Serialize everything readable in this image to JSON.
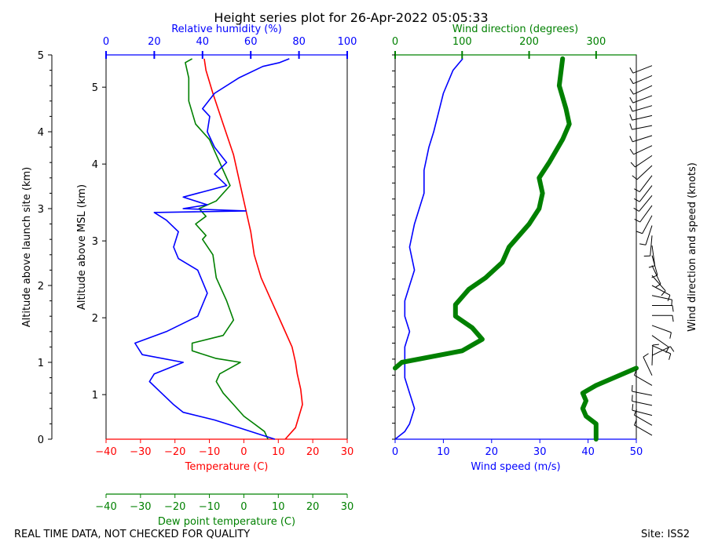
{
  "title": "Height series plot for 26-Apr-2022 05:05:33",
  "footer": {
    "left": "REAL TIME DATA, NOT CHECKED FOR QUALITY",
    "right": "Site: ISS2"
  },
  "colors": {
    "temperature": "#ff0000",
    "dewpoint": "#008000",
    "humidity": "#0000ff",
    "wind_speed": "#0000ff",
    "wind_direction": "#008000",
    "barbs": "#000000"
  },
  "chart_data": [
    {
      "type": "line",
      "name": "thermo-panel",
      "axes": {
        "temperature": {
          "label": "Temperature (C)",
          "range": [
            -40,
            30
          ],
          "ticks": [
            -40,
            -30,
            -20,
            -10,
            0,
            10,
            20,
            30
          ]
        },
        "dewpoint": {
          "label": "Dew point temperature (C)",
          "range": [
            -40,
            30
          ],
          "ticks": [
            -40,
            -30,
            -20,
            -10,
            0,
            10,
            20,
            30
          ]
        },
        "humidity": {
          "label": "Relative humidity (%)",
          "range": [
            0,
            100
          ],
          "ticks": [
            0,
            20,
            40,
            60,
            80,
            100
          ]
        },
        "alt_msl": {
          "label": "Altitude above MSL (km)",
          "range": [
            0.42,
            5.42
          ],
          "ticks": [
            1,
            2,
            3,
            4,
            5
          ]
        },
        "alt_site": {
          "label": "Altitude above launch site (km)",
          "range": [
            0,
            5
          ],
          "ticks": [
            0,
            1,
            2,
            3,
            4,
            5
          ]
        }
      },
      "series": [
        {
          "name": "Temperature",
          "axis": "temperature",
          "points": [
            [
              12,
              0
            ],
            [
              13,
              0.05
            ],
            [
              15,
              0.15
            ],
            [
              16,
              0.3
            ],
            [
              17,
              0.45
            ],
            [
              16.5,
              0.65
            ],
            [
              15.5,
              0.85
            ],
            [
              15,
              1.0
            ],
            [
              14,
              1.2
            ],
            [
              11,
              1.5
            ],
            [
              8,
              1.8
            ],
            [
              5,
              2.1
            ],
            [
              3,
              2.4
            ],
            [
              2,
              2.7
            ],
            [
              0.5,
              3.0
            ],
            [
              -1,
              3.3
            ],
            [
              -3,
              3.7
            ],
            [
              -6,
              4.1
            ],
            [
              -9,
              4.5
            ],
            [
              -11,
              4.8
            ],
            [
              -11.5,
              4.95
            ]
          ]
        },
        {
          "name": "Dew point",
          "axis": "dewpoint",
          "points": [
            [
              7,
              0
            ],
            [
              6,
              0.1
            ],
            [
              3,
              0.2
            ],
            [
              0,
              0.3
            ],
            [
              -3,
              0.45
            ],
            [
              -6,
              0.6
            ],
            [
              -8,
              0.75
            ],
            [
              -7,
              0.85
            ],
            [
              -3,
              0.95
            ],
            [
              -1,
              1.0
            ],
            [
              -8,
              1.05
            ],
            [
              -15,
              1.15
            ],
            [
              -15,
              1.25
            ],
            [
              -6,
              1.35
            ],
            [
              -3,
              1.55
            ],
            [
              -5,
              1.8
            ],
            [
              -8,
              2.1
            ],
            [
              -9,
              2.4
            ],
            [
              -12,
              2.6
            ],
            [
              -11,
              2.65
            ],
            [
              -14,
              2.8
            ],
            [
              -11,
              2.9
            ],
            [
              -13,
              3.0
            ],
            [
              -8,
              3.1
            ],
            [
              -4,
              3.3
            ],
            [
              -6,
              3.5
            ],
            [
              -8,
              3.7
            ],
            [
              -10,
              3.9
            ],
            [
              -14,
              4.1
            ],
            [
              -16,
              4.4
            ],
            [
              -16,
              4.7
            ],
            [
              -17,
              4.9
            ],
            [
              -15,
              4.95
            ]
          ]
        },
        {
          "name": "Relative humidity",
          "axis": "humidity",
          "points": [
            [
              70,
              0
            ],
            [
              65,
              0.05
            ],
            [
              55,
              0.15
            ],
            [
              45,
              0.25
            ],
            [
              32,
              0.35
            ],
            [
              28,
              0.45
            ],
            [
              23,
              0.6
            ],
            [
              18,
              0.75
            ],
            [
              20,
              0.85
            ],
            [
              28,
              0.95
            ],
            [
              32,
              1.0
            ],
            [
              15,
              1.1
            ],
            [
              12,
              1.25
            ],
            [
              25,
              1.4
            ],
            [
              38,
              1.6
            ],
            [
              42,
              1.9
            ],
            [
              38,
              2.2
            ],
            [
              30,
              2.35
            ],
            [
              28,
              2.5
            ],
            [
              30,
              2.7
            ],
            [
              25,
              2.85
            ],
            [
              20,
              2.95
            ],
            [
              58,
              2.97
            ],
            [
              32,
              3.0
            ],
            [
              42,
              3.05
            ],
            [
              32,
              3.15
            ],
            [
              50,
              3.3
            ],
            [
              45,
              3.45
            ],
            [
              50,
              3.6
            ],
            [
              45,
              3.8
            ],
            [
              42,
              4.0
            ],
            [
              43,
              4.2
            ],
            [
              40,
              4.3
            ],
            [
              45,
              4.5
            ],
            [
              55,
              4.7
            ],
            [
              65,
              4.85
            ],
            [
              72,
              4.9
            ],
            [
              76,
              4.95
            ]
          ]
        }
      ]
    },
    {
      "type": "line",
      "name": "wind-panel",
      "axes": {
        "wind_speed": {
          "label": "Wind speed (m/s)",
          "range": [
            0,
            50
          ],
          "ticks": [
            0,
            10,
            20,
            30,
            40,
            50
          ]
        },
        "wind_direction": {
          "label": "Wind direction (degrees)",
          "range": [
            0,
            360
          ],
          "ticks": [
            0,
            100,
            200,
            300
          ]
        },
        "altitude": {
          "label": "",
          "range": [
            0.42,
            5.42
          ],
          "ticks": []
        },
        "barbs": {
          "label": "Wind direction and speed (knots)"
        }
      },
      "series": [
        {
          "name": "Wind speed",
          "axis": "wind_speed",
          "points": [
            [
              0,
              0
            ],
            [
              2,
              0.1
            ],
            [
              3,
              0.2
            ],
            [
              4,
              0.4
            ],
            [
              3,
              0.6
            ],
            [
              2,
              0.8
            ],
            [
              2,
              1.0
            ],
            [
              2,
              1.2
            ],
            [
              3,
              1.4
            ],
            [
              2,
              1.6
            ],
            [
              2,
              1.8
            ],
            [
              3,
              2.0
            ],
            [
              4,
              2.2
            ],
            [
              3,
              2.5
            ],
            [
              4,
              2.8
            ],
            [
              5,
              3.0
            ],
            [
              6,
              3.2
            ],
            [
              6,
              3.5
            ],
            [
              7,
              3.8
            ],
            [
              8,
              4.0
            ],
            [
              10,
              4.5
            ],
            [
              12,
              4.8
            ],
            [
              14,
              4.95
            ]
          ]
        },
        {
          "name": "Wind direction",
          "axis": "wind_direction",
          "points": [
            [
              300,
              0
            ],
            [
              300,
              0.2
            ],
            [
              285,
              0.3
            ],
            [
              280,
              0.4
            ],
            [
              285,
              0.5
            ],
            [
              280,
              0.6
            ],
            [
              300,
              0.7
            ],
            [
              340,
              0.85
            ],
            [
              10,
              1.0
            ],
            [
              100,
              1.15
            ],
            [
              130,
              1.3
            ],
            [
              115,
              1.45
            ],
            [
              90,
              1.6
            ],
            [
              90,
              1.75
            ],
            [
              110,
              1.95
            ],
            [
              135,
              2.1
            ],
            [
              160,
              2.3
            ],
            [
              170,
              2.5
            ],
            [
              200,
              2.8
            ],
            [
              215,
              3.0
            ],
            [
              220,
              3.2
            ],
            [
              215,
              3.4
            ],
            [
              230,
              3.6
            ],
            [
              250,
              3.9
            ],
            [
              260,
              4.1
            ],
            [
              255,
              4.3
            ],
            [
              245,
              4.6
            ],
            [
              250,
              4.95
            ]
          ]
        }
      ]
    }
  ]
}
